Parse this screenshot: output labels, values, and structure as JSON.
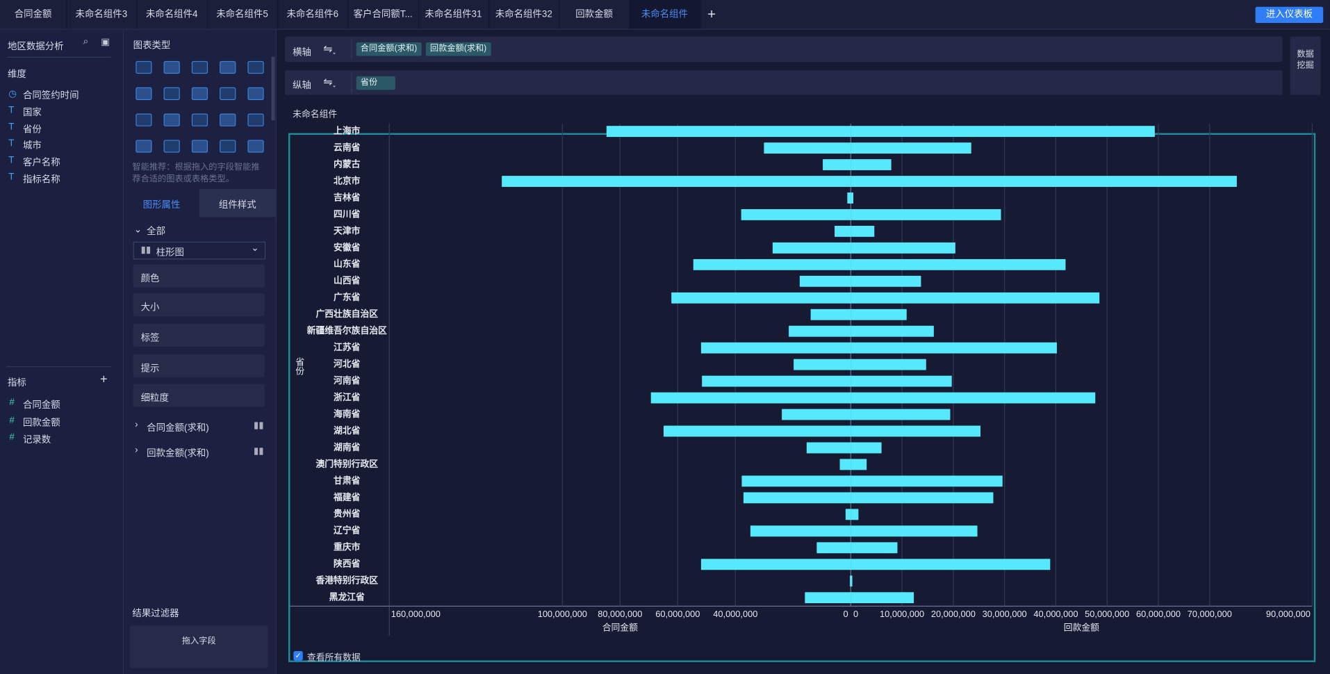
{
  "tabs": [
    "合同金额",
    "未命名组件3",
    "未命名组件4",
    "未命名组件5",
    "未命名组件6",
    "客户合同额T...",
    "未命名组件31",
    "未命名组件32",
    "回款金额",
    "未命名组件"
  ],
  "enter_dashboard": "进入仪表板",
  "data_panel": {
    "dataset": "地区数据分析",
    "dimensions_title": "维度",
    "dimensions": [
      "合同签约时间",
      "国家",
      "省份",
      "城市",
      "客户名称",
      "指标名称"
    ],
    "measures_title": "指标",
    "measures": [
      "合同金额",
      "回款金额",
      "记录数"
    ]
  },
  "config_panel": {
    "chart_types_title": "图表类型",
    "hint": "智能推荐：根据拖入的字段智能推荐合适的图表或表格类型。",
    "tabs": [
      "图形属性",
      "组件样式"
    ],
    "all": "全部",
    "chart_select": "柱形图",
    "props": [
      "颜色",
      "大小",
      "标签",
      "提示",
      "细粒度"
    ],
    "fields": [
      "合同金额(求和)",
      "回款金额(求和)"
    ],
    "filter_title": "结果过滤器",
    "filter_drop": "拖入字段"
  },
  "shelf": {
    "x_label": "横轴",
    "x_fields": [
      "合同金额(求和)",
      "回款金额(求和)"
    ],
    "y_label": "纵轴",
    "y_fields": [
      "省份"
    ],
    "data_mining": "数据挖掘"
  },
  "component_title": "未命名组件",
  "show_all": "查看所有数据",
  "chart_data": {
    "type": "butterfly",
    "y_axis_label": "省份",
    "categories": [
      "上海市",
      "云南省",
      "内蒙古",
      "北京市",
      "吉林省",
      "四川省",
      "天津市",
      "安徽省",
      "山东省",
      "山西省",
      "广东省",
      "广西壮族自治区",
      "新疆维吾尔族自治区",
      "江苏省",
      "河北省",
      "河南省",
      "浙江省",
      "海南省",
      "湖北省",
      "湖南省",
      "澳门特别行政区",
      "甘肃省",
      "福建省",
      "贵州省",
      "辽宁省",
      "重庆市",
      "陕西省",
      "香港特别行政区",
      "黑龙江省"
    ],
    "series": [
      {
        "name": "合同金额",
        "color": "#56e8fb",
        "values": [
          84700000,
          30100000,
          9700000,
          121000000,
          1200000,
          38000000,
          5600000,
          27100000,
          54600000,
          17700000,
          62200000,
          13900000,
          21500000,
          51900000,
          19800000,
          51600000,
          69300000,
          23900000,
          64900000,
          15300000,
          3800000,
          37800000,
          37200000,
          1800000,
          34800000,
          11800000,
          51900000,
          300000,
          15900000
        ]
      },
      {
        "name": "回款金额",
        "color": "#56e8fb",
        "axis": "x2",
        "values": [
          59300000,
          23500000,
          7900000,
          75300000,
          500000,
          29300000,
          4600000,
          20400000,
          41900000,
          13700000,
          48500000,
          10900000,
          16200000,
          40200000,
          14700000,
          19700000,
          47700000,
          19400000,
          25300000,
          6000000,
          3100000,
          29600000,
          27800000,
          1500000,
          24700000,
          9100000,
          38900000,
          300000,
          12300000
        ]
      }
    ],
    "xlim": [
      0,
      160000000
    ],
    "xticks": [
      0,
      {
        "value": 40000000,
        "label": "40,000,000"
      },
      {
        "value": 60000000,
        "label": "60,000,000"
      },
      {
        "value": 80000000,
        "label": "80,000,000"
      },
      {
        "value": 100000000,
        "label": "100,000,000"
      },
      {
        "value": 160000000,
        "label": "160,000,000"
      }
    ],
    "x2lim": [
      0,
      90000000
    ],
    "x2ticks": [
      0,
      {
        "value": 10000000,
        "label": "10,000,000"
      },
      {
        "value": 20000000,
        "label": "20,000,000"
      },
      {
        "value": 30000000,
        "label": "30,000,000"
      },
      {
        "value": 40000000,
        "label": "40,000,000"
      },
      {
        "value": 50000000,
        "label": "50,000,000"
      },
      {
        "value": 60000000,
        "label": "60,000,000"
      },
      {
        "value": 70000000,
        "label": "70,000,000"
      },
      {
        "value": 90000000,
        "label": "90,000,000"
      }
    ],
    "grid": true
  }
}
